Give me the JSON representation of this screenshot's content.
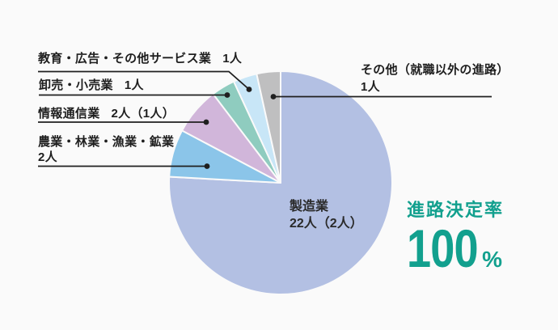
{
  "page": {
    "background": "#fafafa",
    "text_color": "#1e1e1e",
    "accent_color": "#12a08e"
  },
  "chart_data": {
    "type": "pie",
    "title": "",
    "unit": "人",
    "total": 29,
    "start_angle_deg": 0,
    "direction": "clockwise",
    "legend_position": "callouts",
    "segments": [
      {
        "label": "製造業",
        "value": 22,
        "display": "22人（2人）",
        "color": "#b3c0e3"
      },
      {
        "label": "農業・林業・漁業・鉱業",
        "value": 2,
        "display": "2人",
        "color": "#8bc5e9"
      },
      {
        "label": "情報通信業",
        "value": 2,
        "display": "2人（1人）",
        "color": "#d1b6da"
      },
      {
        "label": "卸売・小売業",
        "value": 1,
        "display": "1人",
        "color": "#8fccbf"
      },
      {
        "label": "教育・広告・その他サービス業",
        "value": 1,
        "display": "1人",
        "color": "#c8e6f7"
      },
      {
        "label": "その他（就職以外の進路）",
        "value": 1,
        "display": "1人",
        "color": "#bfbfc0"
      }
    ],
    "annotation": {
      "label": "進路決定率",
      "value": "100",
      "unit": "%"
    }
  },
  "callouts": {
    "left": [
      {
        "name": "教育・広告・その他サービス業",
        "count": "1人"
      },
      {
        "name": "卸売・小売業",
        "count": "1人"
      },
      {
        "name": "情報通信業",
        "count": "2人（1人）"
      },
      {
        "name": "農業・林業・漁業・鉱業",
        "count": "2人"
      }
    ],
    "right": {
      "name": "その他（就職以外の進路）",
      "count": "1人"
    },
    "pie": {
      "name": "製造業",
      "count": "22人（2人）"
    }
  },
  "rate": {
    "label": "進路決定率",
    "value": "100",
    "unit": "%"
  }
}
